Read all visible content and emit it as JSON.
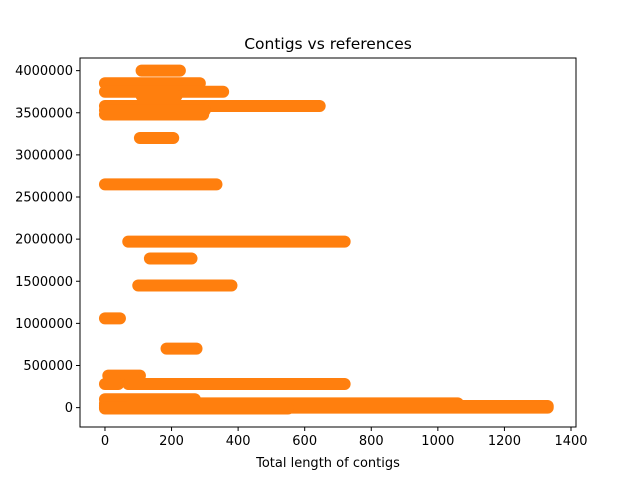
{
  "chart_data": {
    "type": "scatter",
    "title": "Contigs vs references",
    "xlabel": "Total length of contigs",
    "ylabel": "",
    "xlim": [
      -75,
      1415
    ],
    "ylim": [
      -230000,
      4150000
    ],
    "x_ticks": [
      0,
      200,
      400,
      600,
      800,
      1000,
      1200,
      1400
    ],
    "x_tick_labels": [
      "0",
      "200",
      "400",
      "600",
      "800",
      "1000",
      "1200",
      "1400"
    ],
    "y_ticks": [
      0,
      500000,
      1000000,
      1500000,
      2000000,
      2500000,
      3000000,
      3500000,
      4000000
    ],
    "y_tick_labels": [
      "0",
      "500000",
      "1000000",
      "1500000",
      "2000000",
      "2500000",
      "3000000",
      "3500000",
      "4000000"
    ],
    "grid": false,
    "series": [
      {
        "color": "#ff7f0e",
        "marker": "circle",
        "segments": [
          {
            "y": 4000000,
            "x_start": 110,
            "x_end": 225
          },
          {
            "y": 3850000,
            "x_start": 0,
            "x_end": 285
          },
          {
            "y": 3800000,
            "x_start": 110,
            "x_end": 215
          },
          {
            "y": 3750000,
            "x_start": 0,
            "x_end": 355
          },
          {
            "y": 3700000,
            "x_start": 110,
            "x_end": 215
          },
          {
            "y": 3580000,
            "x_start": 0,
            "x_end": 645
          },
          {
            "y": 3530000,
            "x_start": 0,
            "x_end": 300
          },
          {
            "y": 3480000,
            "x_start": 0,
            "x_end": 295
          },
          {
            "y": 3200000,
            "x_start": 105,
            "x_end": 205
          },
          {
            "y": 2650000,
            "x_start": 0,
            "x_end": 335
          },
          {
            "y": 1970000,
            "x_start": 70,
            "x_end": 720
          },
          {
            "y": 1770000,
            "x_start": 135,
            "x_end": 260
          },
          {
            "y": 1450000,
            "x_start": 100,
            "x_end": 380
          },
          {
            "y": 1060000,
            "x_start": 0,
            "x_end": 45
          },
          {
            "y": 700000,
            "x_start": 185,
            "x_end": 275
          },
          {
            "y": 380000,
            "x_start": 10,
            "x_end": 105
          },
          {
            "y": 280000,
            "x_start": 0,
            "x_end": 40
          },
          {
            "y": 280000,
            "x_start": 70,
            "x_end": 720
          },
          {
            "y": 100000,
            "x_start": 0,
            "x_end": 270
          },
          {
            "y": 50000,
            "x_start": 0,
            "x_end": 1060
          },
          {
            "y": 20000,
            "x_start": 0,
            "x_end": 1330
          },
          {
            "y": 0,
            "x_start": 0,
            "x_end": 1330
          },
          {
            "y": -10000,
            "x_start": 0,
            "x_end": 550
          }
        ]
      }
    ]
  }
}
